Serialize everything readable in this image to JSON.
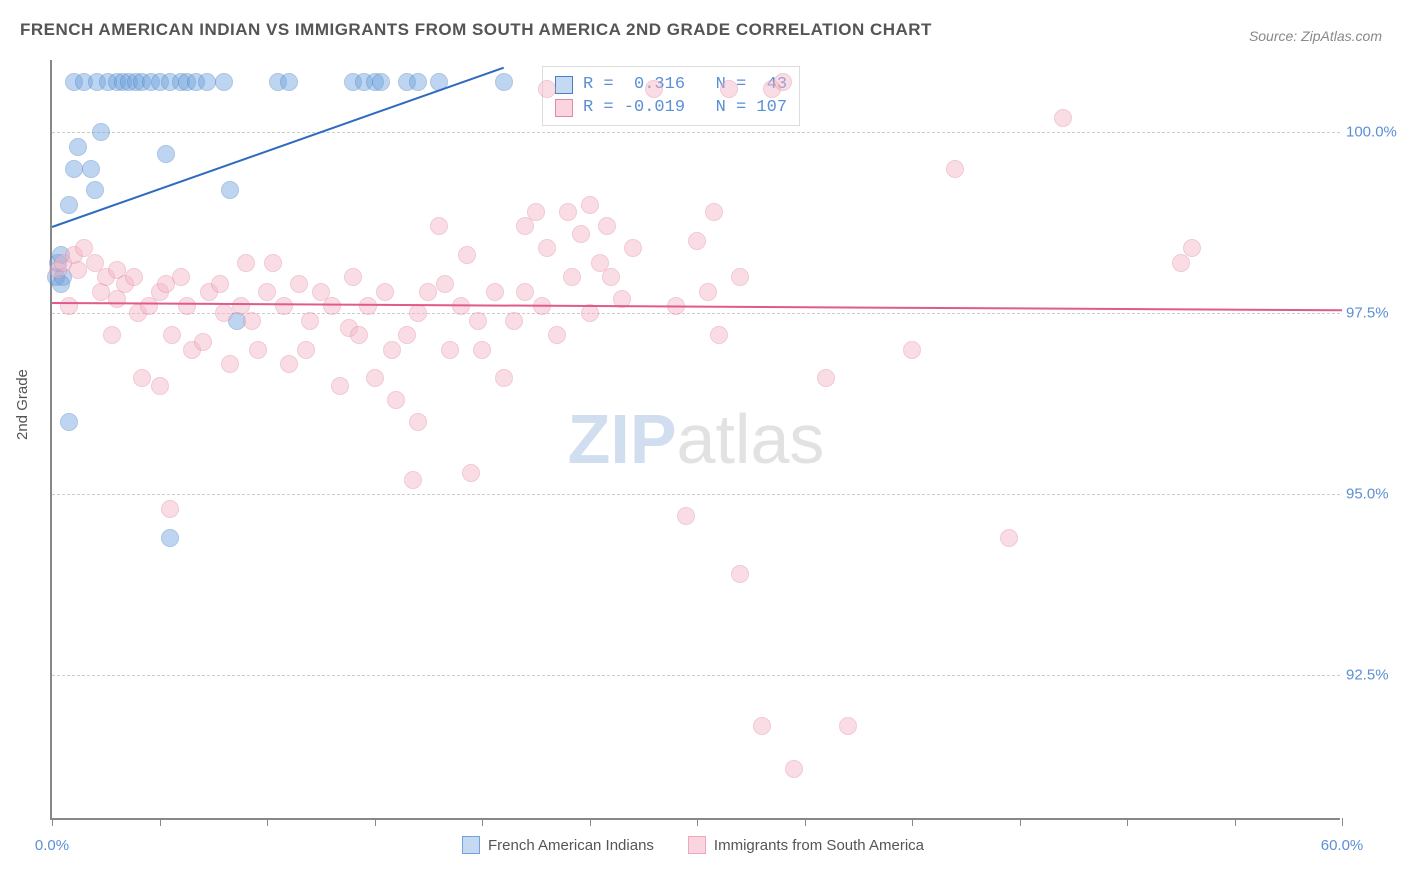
{
  "title": "FRENCH AMERICAN INDIAN VS IMMIGRANTS FROM SOUTH AMERICA 2ND GRADE CORRELATION CHART",
  "source": "Source: ZipAtlas.com",
  "y_axis_label": "2nd Grade",
  "watermark": {
    "part1": "ZIP",
    "part2": "atlas"
  },
  "chart": {
    "type": "scatter",
    "xlim": [
      0,
      60
    ],
    "ylim": [
      90.5,
      101
    ],
    "x_ticks": [
      0,
      5,
      10,
      15,
      20,
      25,
      30,
      35,
      40,
      45,
      50,
      55,
      60
    ],
    "x_tick_labels": {
      "0": "0.0%",
      "60": "60.0%"
    },
    "y_gridlines": [
      92.5,
      95.0,
      97.5,
      100.0
    ],
    "y_tick_labels": [
      "92.5%",
      "95.0%",
      "97.5%",
      "100.0%"
    ],
    "background_color": "#ffffff",
    "grid_color": "#cccccc",
    "marker_radius": 9,
    "marker_opacity": 0.45,
    "series": [
      {
        "name": "French American Indians",
        "color": "#6ea3e0",
        "border_color": "#4a7fc0",
        "R": "0.316",
        "N": "43",
        "trend": {
          "x1": 0,
          "y1": 98.7,
          "x2": 21,
          "y2": 100.9,
          "color": "#2e6bc0"
        },
        "points": [
          [
            0.2,
            98.0
          ],
          [
            0.3,
            98.2
          ],
          [
            0.4,
            98.3
          ],
          [
            0.5,
            98.0
          ],
          [
            0.8,
            99.0
          ],
          [
            1.0,
            99.5
          ],
          [
            1.2,
            99.8
          ],
          [
            1.0,
            100.7
          ],
          [
            1.5,
            100.7
          ],
          [
            1.8,
            99.5
          ],
          [
            2.0,
            99.2
          ],
          [
            2.1,
            100.7
          ],
          [
            2.3,
            100.0
          ],
          [
            2.6,
            100.7
          ],
          [
            3.0,
            100.7
          ],
          [
            3.3,
            100.7
          ],
          [
            3.6,
            100.7
          ],
          [
            3.9,
            100.7
          ],
          [
            4.2,
            100.7
          ],
          [
            4.6,
            100.7
          ],
          [
            5.0,
            100.7
          ],
          [
            5.3,
            99.7
          ],
          [
            5.5,
            100.7
          ],
          [
            6.0,
            100.7
          ],
          [
            6.3,
            100.7
          ],
          [
            6.7,
            100.7
          ],
          [
            7.2,
            100.7
          ],
          [
            8.0,
            100.7
          ],
          [
            8.3,
            99.2
          ],
          [
            8.6,
            97.4
          ],
          [
            10.5,
            100.7
          ],
          [
            11.0,
            100.7
          ],
          [
            14.0,
            100.7
          ],
          [
            14.5,
            100.7
          ],
          [
            15.0,
            100.7
          ],
          [
            15.3,
            100.7
          ],
          [
            16.5,
            100.7
          ],
          [
            17.0,
            100.7
          ],
          [
            18.0,
            100.7
          ],
          [
            21.0,
            100.7
          ],
          [
            0.8,
            96.0
          ],
          [
            5.5,
            94.4
          ],
          [
            0.4,
            97.9
          ]
        ]
      },
      {
        "name": "Immigrants from South America",
        "color": "#f4b5c5",
        "border_color": "#e08aa5",
        "R": "-0.019",
        "N": "107",
        "trend": {
          "x1": 0,
          "y1": 97.65,
          "x2": 60,
          "y2": 97.55,
          "color": "#e05a8a"
        },
        "points": [
          [
            0.3,
            98.1
          ],
          [
            0.5,
            98.2
          ],
          [
            0.8,
            97.6
          ],
          [
            1.0,
            98.3
          ],
          [
            1.2,
            98.1
          ],
          [
            1.5,
            98.4
          ],
          [
            2.0,
            98.2
          ],
          [
            2.3,
            97.8
          ],
          [
            2.5,
            98.0
          ],
          [
            2.8,
            97.2
          ],
          [
            3.0,
            97.7
          ],
          [
            3.0,
            98.1
          ],
          [
            3.4,
            97.9
          ],
          [
            3.8,
            98.0
          ],
          [
            4.0,
            97.5
          ],
          [
            4.2,
            96.6
          ],
          [
            4.5,
            97.6
          ],
          [
            5.0,
            97.8
          ],
          [
            5.0,
            96.5
          ],
          [
            5.3,
            97.9
          ],
          [
            5.6,
            97.2
          ],
          [
            6.0,
            98.0
          ],
          [
            6.3,
            97.6
          ],
          [
            6.5,
            97.0
          ],
          [
            7.0,
            97.1
          ],
          [
            7.3,
            97.8
          ],
          [
            7.8,
            97.9
          ],
          [
            8.0,
            97.5
          ],
          [
            8.3,
            96.8
          ],
          [
            8.8,
            97.6
          ],
          [
            9.0,
            98.2
          ],
          [
            9.3,
            97.4
          ],
          [
            9.6,
            97.0
          ],
          [
            10.0,
            97.8
          ],
          [
            10.3,
            98.2
          ],
          [
            10.8,
            97.6
          ],
          [
            11.0,
            96.8
          ],
          [
            11.5,
            97.9
          ],
          [
            11.8,
            97.0
          ],
          [
            12.0,
            97.4
          ],
          [
            12.5,
            97.8
          ],
          [
            13.0,
            97.6
          ],
          [
            13.4,
            96.5
          ],
          [
            13.8,
            97.3
          ],
          [
            14.0,
            98.0
          ],
          [
            14.3,
            97.2
          ],
          [
            14.7,
            97.6
          ],
          [
            15.0,
            96.6
          ],
          [
            15.5,
            97.8
          ],
          [
            15.8,
            97.0
          ],
          [
            16.0,
            96.3
          ],
          [
            16.5,
            97.2
          ],
          [
            16.8,
            95.2
          ],
          [
            17.0,
            97.5
          ],
          [
            17.0,
            96.0
          ],
          [
            17.5,
            97.8
          ],
          [
            18.0,
            98.7
          ],
          [
            18.3,
            97.9
          ],
          [
            18.5,
            97.0
          ],
          [
            19.0,
            97.6
          ],
          [
            19.3,
            98.3
          ],
          [
            19.5,
            95.3
          ],
          [
            19.8,
            97.4
          ],
          [
            20.0,
            97.0
          ],
          [
            20.6,
            97.8
          ],
          [
            21.0,
            96.6
          ],
          [
            21.5,
            97.4
          ],
          [
            22.0,
            98.7
          ],
          [
            22.0,
            97.8
          ],
          [
            22.5,
            98.9
          ],
          [
            22.8,
            97.6
          ],
          [
            23.0,
            98.4
          ],
          [
            23.0,
            100.6
          ],
          [
            23.5,
            97.2
          ],
          [
            24.0,
            98.9
          ],
          [
            24.2,
            98.0
          ],
          [
            24.6,
            98.6
          ],
          [
            25.0,
            97.5
          ],
          [
            25.0,
            99.0
          ],
          [
            25.5,
            98.2
          ],
          [
            25.8,
            98.7
          ],
          [
            26.0,
            98.0
          ],
          [
            26.5,
            97.7
          ],
          [
            27.0,
            98.4
          ],
          [
            28.0,
            100.6
          ],
          [
            29.0,
            97.6
          ],
          [
            29.5,
            94.7
          ],
          [
            30.0,
            98.5
          ],
          [
            30.5,
            97.8
          ],
          [
            30.8,
            98.9
          ],
          [
            31.0,
            97.2
          ],
          [
            31.5,
            100.6
          ],
          [
            32.0,
            98.0
          ],
          [
            32.0,
            93.9
          ],
          [
            33.0,
            91.8
          ],
          [
            33.5,
            100.6
          ],
          [
            34.0,
            100.7
          ],
          [
            34.5,
            91.2
          ],
          [
            36.0,
            96.6
          ],
          [
            37.0,
            91.8
          ],
          [
            40.0,
            97.0
          ],
          [
            42.0,
            99.5
          ],
          [
            44.5,
            94.4
          ],
          [
            47.0,
            100.2
          ],
          [
            52.5,
            98.2
          ],
          [
            53.0,
            98.4
          ],
          [
            5.5,
            94.8
          ]
        ]
      }
    ]
  },
  "legend": {
    "items": [
      {
        "label": "French American Indians",
        "fill": "#c5d9f2",
        "border": "#6ea3e0"
      },
      {
        "label": "Immigrants from South America",
        "fill": "#fad5e0",
        "border": "#f0a6bd"
      }
    ]
  }
}
